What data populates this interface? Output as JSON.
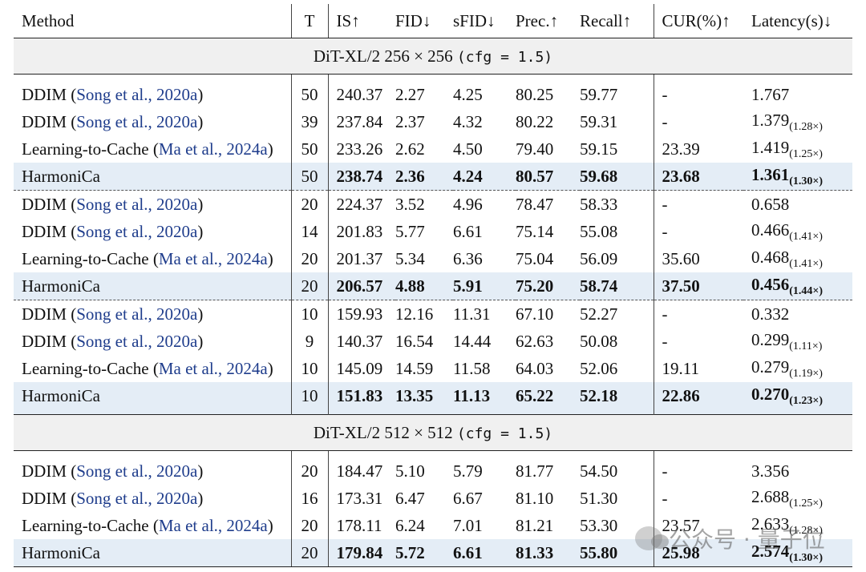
{
  "header": [
    "Method",
    "T",
    "IS↑",
    "FID↓",
    "sFID↓",
    "Prec.↑",
    "Recall↑",
    "CUR(%)↑",
    "Latency(s)↓"
  ],
  "sections": [
    {
      "model": "DiT-XL/2 256 × 256",
      "cfg_label": "(cfg = 1.5)",
      "groups": [
        [
          {
            "method": "DDIM",
            "cite": "Song et al., 2020a",
            "T": "50",
            "IS": "240.37",
            "FID": "2.27",
            "sFID": "4.25",
            "Prec": "80.25",
            "Recall": "59.77",
            "CUR": "-",
            "Latency": "1.767",
            "Speedup": ""
          },
          {
            "method": "DDIM",
            "cite": "Song et al., 2020a",
            "T": "39",
            "IS": "237.84",
            "FID": "2.37",
            "sFID": "4.32",
            "Prec": "80.22",
            "Recall": "59.31",
            "CUR": "-",
            "Latency": "1.379",
            "Speedup": "(1.28×)"
          },
          {
            "method": "Learning-to-Cache",
            "cite": "Ma et al., 2024a",
            "T": "50",
            "IS": "233.26",
            "FID": "2.62",
            "sFID": "4.50",
            "Prec": "79.40",
            "Recall": "59.15",
            "CUR": "23.39",
            "Latency": "1.419",
            "Speedup": "(1.25×)"
          },
          {
            "method": "HarmoniCa",
            "cite": "",
            "T": "50",
            "IS": "238.74",
            "FID": "2.36",
            "sFID": "4.24",
            "Prec": "80.57",
            "Recall": "59.68",
            "CUR": "23.68",
            "Latency": "1.361",
            "Speedup": "(1.30×)"
          }
        ],
        [
          {
            "method": "DDIM",
            "cite": "Song et al., 2020a",
            "T": "20",
            "IS": "224.37",
            "FID": "3.52",
            "sFID": "4.96",
            "Prec": "78.47",
            "Recall": "58.33",
            "CUR": "-",
            "Latency": "0.658",
            "Speedup": ""
          },
          {
            "method": "DDIM",
            "cite": "Song et al., 2020a",
            "T": "14",
            "IS": "201.83",
            "FID": "5.77",
            "sFID": "6.61",
            "Prec": "75.14",
            "Recall": "55.08",
            "CUR": "-",
            "Latency": "0.466",
            "Speedup": "(1.41×)"
          },
          {
            "method": "Learning-to-Cache",
            "cite": "Ma et al., 2024a",
            "T": "20",
            "IS": "201.37",
            "FID": "5.34",
            "sFID": "6.36",
            "Prec": "75.04",
            "Recall": "56.09",
            "CUR": "35.60",
            "Latency": "0.468",
            "Speedup": "(1.41×)"
          },
          {
            "method": "HarmoniCa",
            "cite": "",
            "T": "20",
            "IS": "206.57",
            "FID": "4.88",
            "sFID": "5.91",
            "Prec": "75.20",
            "Recall": "58.74",
            "CUR": "37.50",
            "Latency": "0.456",
            "Speedup": "(1.44×)"
          }
        ],
        [
          {
            "method": "DDIM",
            "cite": "Song et al., 2020a",
            "T": "10",
            "IS": "159.93",
            "FID": "12.16",
            "sFID": "11.31",
            "Prec": "67.10",
            "Recall": "52.27",
            "CUR": "-",
            "Latency": "0.332",
            "Speedup": ""
          },
          {
            "method": "DDIM",
            "cite": "Song et al., 2020a",
            "T": "9",
            "IS": "140.37",
            "FID": "16.54",
            "sFID": "14.44",
            "Prec": "62.63",
            "Recall": "50.08",
            "CUR": "-",
            "Latency": "0.299",
            "Speedup": "(1.11×)"
          },
          {
            "method": "Learning-to-Cache",
            "cite": "Ma et al., 2024a",
            "T": "10",
            "IS": "145.09",
            "FID": "14.59",
            "sFID": "11.58",
            "Prec": "64.03",
            "Recall": "52.06",
            "CUR": "19.11",
            "Latency": "0.279",
            "Speedup": "(1.19×)"
          },
          {
            "method": "HarmoniCa",
            "cite": "",
            "T": "10",
            "IS": "151.83",
            "FID": "13.35",
            "sFID": "11.13",
            "Prec": "65.22",
            "Recall": "52.18",
            "CUR": "22.86",
            "Latency": "0.270",
            "Speedup": "(1.23×)"
          }
        ]
      ]
    },
    {
      "model": "DiT-XL/2 512 × 512",
      "cfg_label": "(cfg = 1.5)",
      "groups": [
        [
          {
            "method": "DDIM",
            "cite": "Song et al., 2020a",
            "T": "20",
            "IS": "184.47",
            "FID": "5.10",
            "sFID": "5.79",
            "Prec": "81.77",
            "Recall": "54.50",
            "CUR": "-",
            "Latency": "3.356",
            "Speedup": ""
          },
          {
            "method": "DDIM",
            "cite": "Song et al., 2020a",
            "T": "16",
            "IS": "173.31",
            "FID": "6.47",
            "sFID": "6.67",
            "Prec": "81.10",
            "Recall": "51.30",
            "CUR": "-",
            "Latency": "2.688",
            "Speedup": "(1.25×)"
          },
          {
            "method": "Learning-to-Cache",
            "cite": "Ma et al., 2024a",
            "T": "20",
            "IS": "178.11",
            "FID": "6.24",
            "sFID": "7.01",
            "Prec": "81.21",
            "Recall": "53.30",
            "CUR": "23.57",
            "Latency": "2.633",
            "Speedup": "(1.28×)"
          },
          {
            "method": "HarmoniCa",
            "cite": "",
            "T": "20",
            "IS": "179.84",
            "FID": "5.72",
            "sFID": "6.61",
            "Prec": "81.33",
            "Recall": "55.80",
            "CUR": "25.98",
            "Latency": "2.574",
            "Speedup": "(1.30×)"
          }
        ]
      ]
    }
  ],
  "watermark": {
    "text": "公众号 · 量子位",
    "icon": "wechat-icon"
  }
}
